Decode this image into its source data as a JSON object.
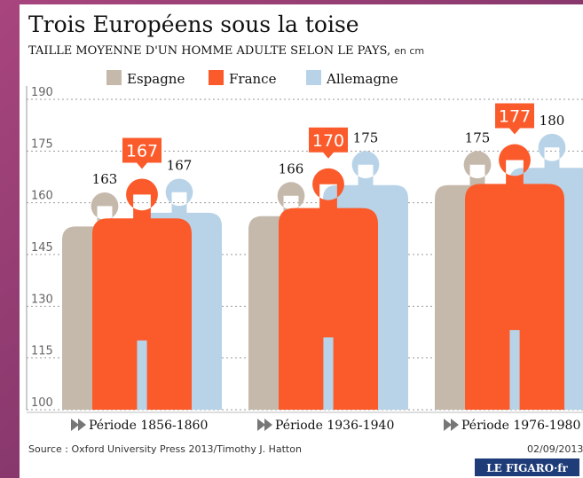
{
  "chart_data": {
    "type": "pictograph",
    "title": "Trois Européens sous la toise",
    "subtitle": "TAILLE MOYENNE D'UN HOMME ADULTE SELON LE PAYS,",
    "unit": "en cm",
    "categories": [
      "Période 1856-1860",
      "Période 1936-1940",
      "Période 1976-1980"
    ],
    "series": [
      {
        "name": "Espagne",
        "color": "#c5b9ab",
        "values": [
          163,
          166,
          175
        ]
      },
      {
        "name": "France",
        "color": "#fb5a2a",
        "values": [
          167,
          170,
          177
        ]
      },
      {
        "name": "Allemagne",
        "color": "#b8d3e8",
        "values": [
          167,
          175,
          180
        ]
      }
    ],
    "ylim": [
      100,
      190
    ],
    "yticks": [
      100,
      115,
      130,
      145,
      160,
      175,
      190
    ],
    "grid": true,
    "source": "Source : Oxford University Press 2013/Timothy J. Hatton",
    "date": "02/09/2013",
    "logo": "LE FIGARO·fr"
  }
}
